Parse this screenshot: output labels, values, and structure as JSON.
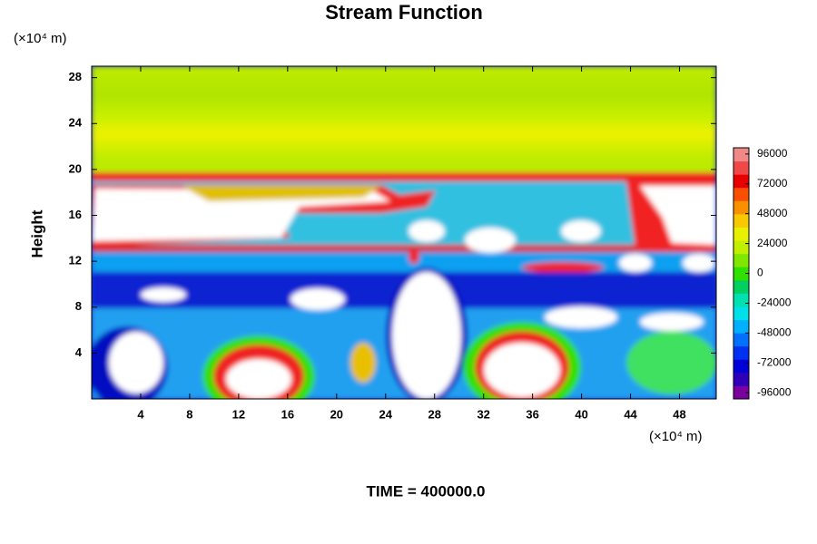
{
  "chart_data": {
    "type": "contour",
    "title": "Stream Function",
    "xunit": "(×10⁴ m)",
    "ylabel": "Height",
    "yunit": "(×10⁴ m)",
    "footer": "TIME = 400000.0",
    "xlim": [
      0,
      51
    ],
    "ylim": [
      0,
      29
    ],
    "xticks": [
      4,
      8,
      12,
      16,
      20,
      24,
      28,
      32,
      36,
      40,
      44,
      48
    ],
    "yticks": [
      4,
      8,
      12,
      16,
      20,
      24,
      28
    ],
    "colorbar": {
      "lim": [
        -101000,
        101000
      ],
      "ticks": [
        96000,
        72000,
        48000,
        24000,
        0,
        -24000,
        -48000,
        -72000,
        -96000
      ],
      "colors": [
        "#7a00a0",
        "#3000b8",
        "#0000d8",
        "#0030f0",
        "#0070ff",
        "#00b0ff",
        "#00e0e8",
        "#00e0b0",
        "#00d060",
        "#30e000",
        "#80e800",
        "#c0f000",
        "#e8f000",
        "#f8c800",
        "#f89000",
        "#f85000",
        "#e80000",
        "#f04848",
        "#f08888"
      ]
    }
  }
}
